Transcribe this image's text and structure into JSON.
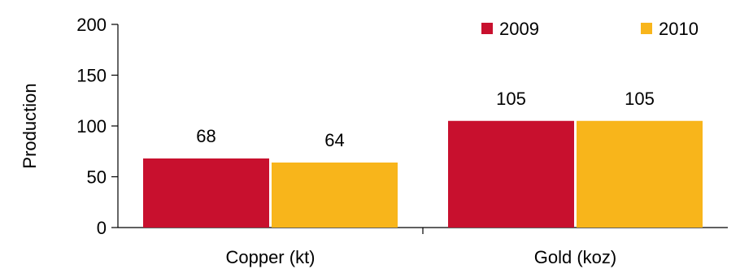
{
  "chart_data": {
    "type": "bar",
    "categories": [
      "Copper (kt)",
      "Gold (koz)"
    ],
    "series": [
      {
        "name": "2009",
        "values": [
          68,
          105
        ],
        "color": "#c8102e"
      },
      {
        "name": "2010",
        "values": [
          64,
          105
        ],
        "color": "#f8b51b"
      }
    ],
    "data_labels": [
      [
        "68",
        "105"
      ],
      [
        "64",
        "105"
      ]
    ],
    "title": "",
    "xlabel": "",
    "ylabel": "Production",
    "ylim": [
      0,
      200
    ],
    "yticks": [
      0,
      50,
      100,
      150,
      200
    ],
    "grid": false,
    "legend_position": "top-right"
  }
}
